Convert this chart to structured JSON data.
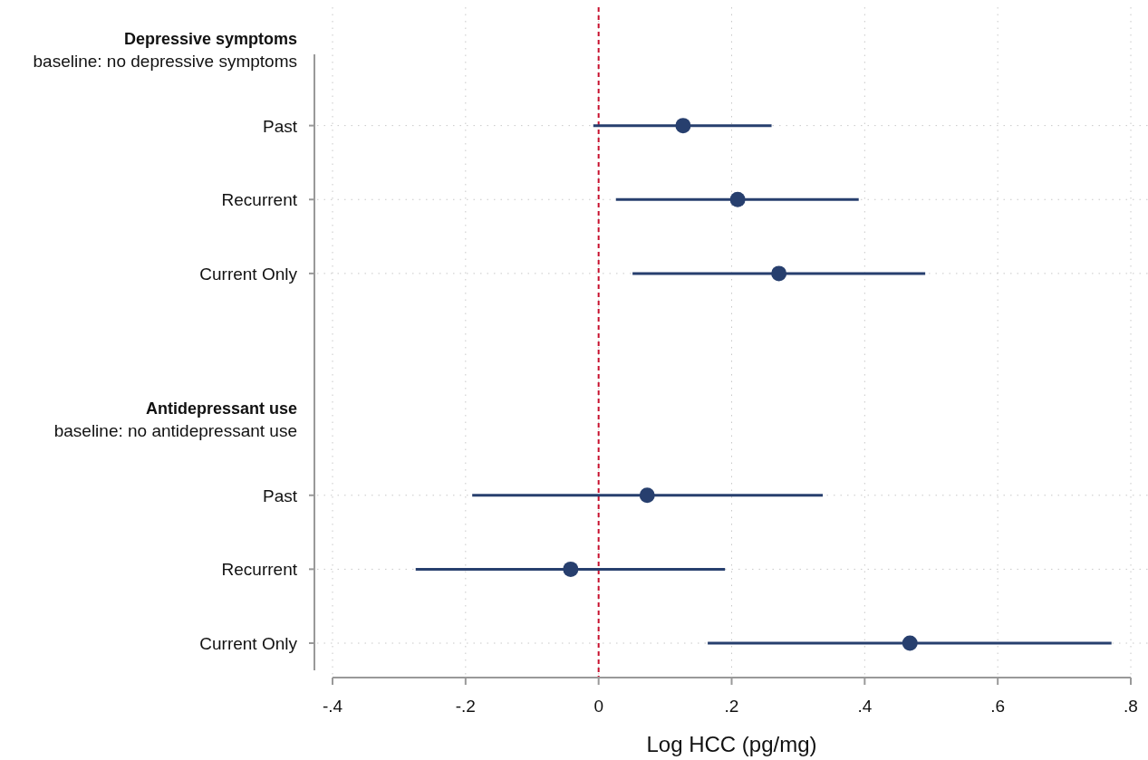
{
  "chart_data": {
    "type": "scatter",
    "orientation": "horizontal",
    "xlabel": "Log HCC (pg/mg)",
    "categories": [
      "Depressive symptoms\nbaseline: no depressive symptoms",
      "Past",
      "Recurrent",
      "Current Only",
      null,
      "Antidepressant use\nbaseline: no antidepressant use",
      "Past",
      "Recurrent",
      "Current Only"
    ],
    "series": [
      {
        "color": "#273f6e",
        "values": [
          null,
          0.127,
          0.209,
          0.271,
          null,
          null,
          0.073,
          -0.042,
          0.468
        ],
        "errors": [
          null,
          [
            -0.008,
            0.26
          ],
          [
            0.026,
            0.391
          ],
          [
            0.051,
            0.491
          ],
          null,
          null,
          [
            -0.19,
            0.337
          ],
          [
            -0.275,
            0.19
          ],
          [
            0.164,
            0.771
          ]
        ]
      }
    ],
    "xlim": [
      -0.4,
      0.8
    ],
    "xticks": [
      {
        "value": -0.4,
        "label": "-.4"
      },
      {
        "value": -0.2,
        "label": "-.2"
      },
      0,
      {
        "value": 0.2,
        "label": ".2"
      },
      {
        "value": 0.4,
        "label": ".4"
      },
      {
        "value": 0.6,
        "label": ".6"
      },
      {
        "value": 0.8,
        "label": ".8"
      }
    ],
    "ref_lines": [
      {
        "axis": "x",
        "value": 0,
        "color": "#c8102e",
        "line_style": "dashed"
      }
    ],
    "grid": true,
    "marker": "circle"
  }
}
